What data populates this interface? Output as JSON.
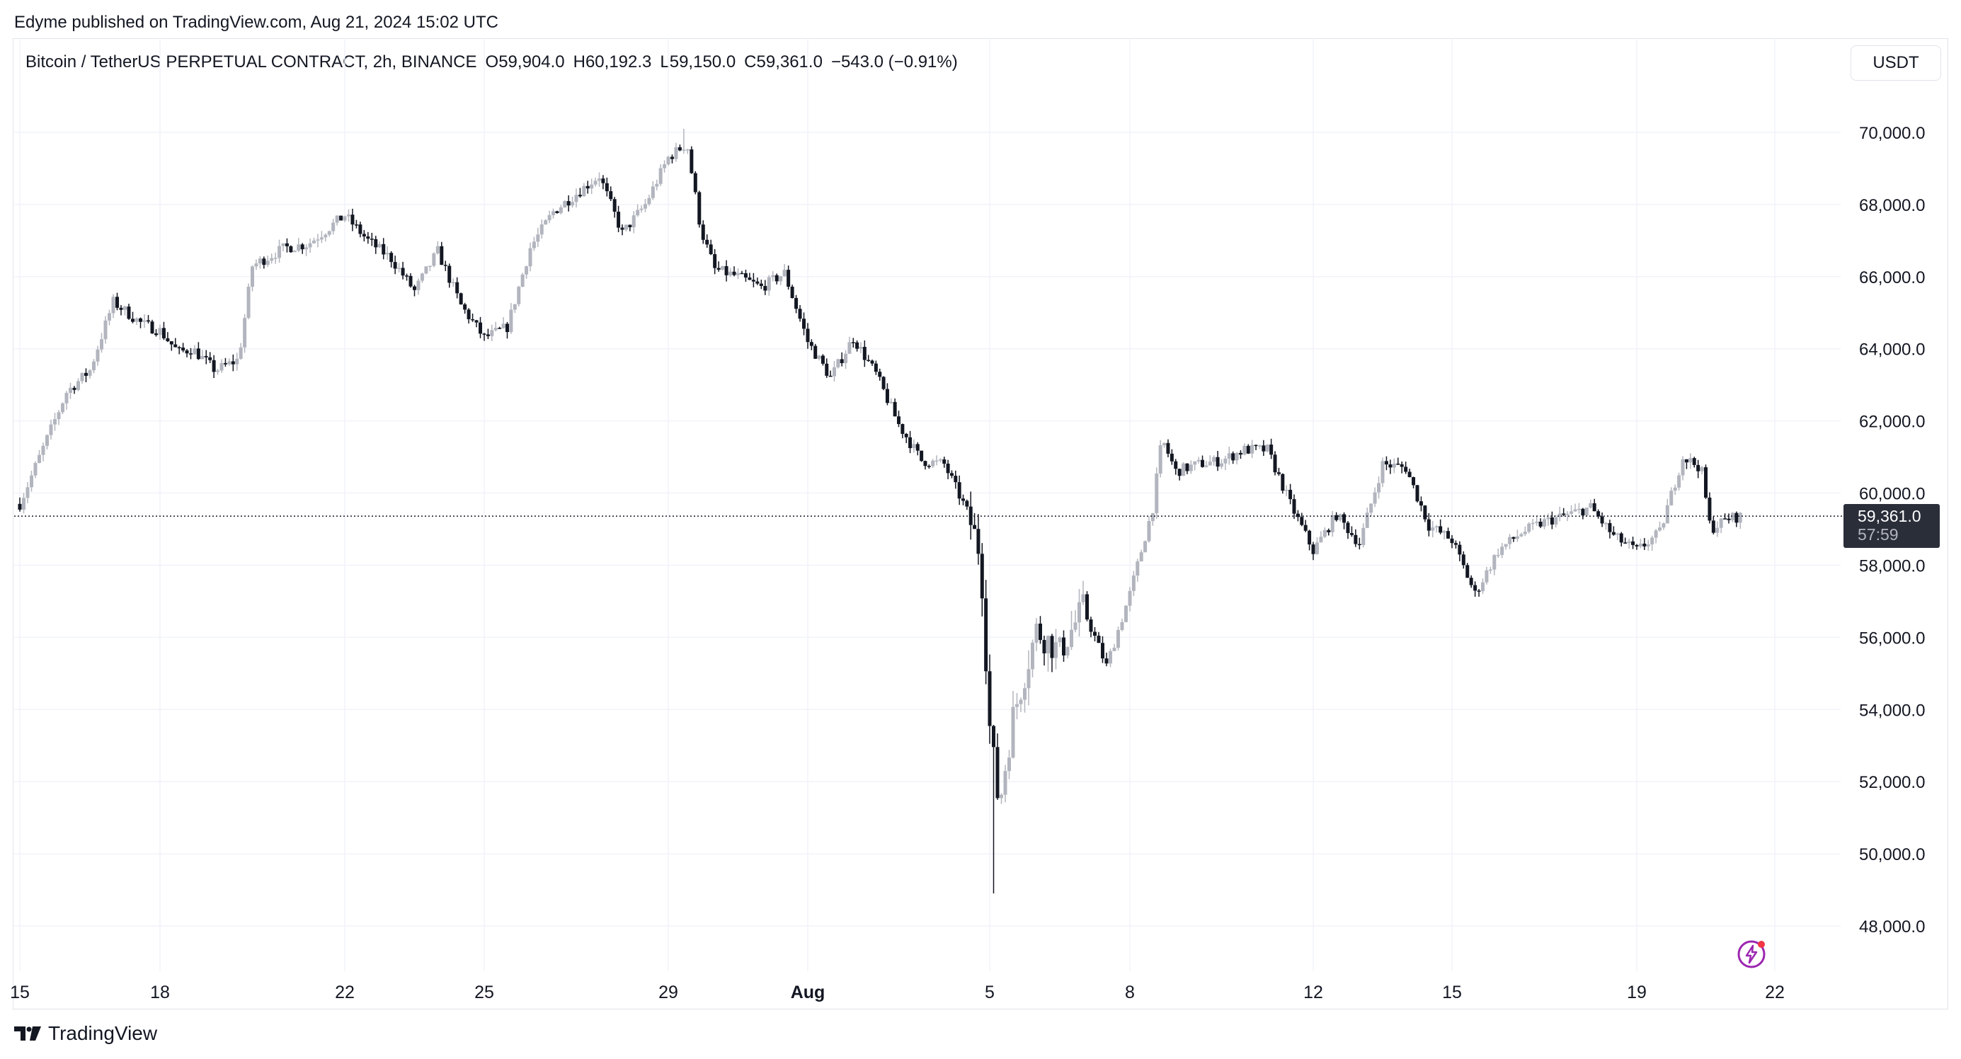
{
  "header": {
    "publisher": "Edyme published on TradingView.com, Aug 21, 2024 15:02 UTC"
  },
  "legend": {
    "symbol": "Bitcoin / TetherUS PERPETUAL CONTRACT, 2h, BINANCE",
    "open": "O59,904.0",
    "high": "H60,192.3",
    "low": "L59,150.0",
    "close": "C59,361.0",
    "change": "−543.0 (−0.91%)"
  },
  "currency_button": "USDT",
  "last_price": {
    "price": "59,361.0",
    "countdown": "57:59"
  },
  "footer": {
    "brand": "TradingView"
  },
  "colors": {
    "up": "#b2b5be",
    "down": "#131722",
    "grid": "#f0f3fa",
    "last_line": "#131722"
  },
  "icons": {
    "alert": "lightning-bolt-icon",
    "logo": "tradingview-logo-icon"
  },
  "chart_data": {
    "type": "candlestick",
    "symbol": "Bitcoin / TetherUS PERPETUAL CONTRACT",
    "interval": "2h",
    "y_axis": {
      "ticks": [
        "70,000.0",
        "68,000.0",
        "66,000.0",
        "64,000.0",
        "62,000.0",
        "60,000.0",
        "58,000.0",
        "56,000.0",
        "54,000.0",
        "52,000.0",
        "50,000.0",
        "48,000.0"
      ],
      "ylim": [
        47000,
        71000
      ],
      "position": "right"
    },
    "x_axis": {
      "ticks": [
        "15",
        "18",
        "22",
        "25",
        "29",
        "Aug",
        "5",
        "8",
        "12",
        "15",
        "19",
        "22"
      ],
      "bold_ticks": [
        "Aug"
      ]
    },
    "grid": true,
    "last_close": 59361.0,
    "close_path": [
      [
        "15",
        59700
      ],
      [
        "16",
        62800
      ],
      [
        "16.5",
        63400
      ],
      [
        "17",
        65300
      ],
      [
        "17.6",
        64700
      ],
      [
        "18",
        64500
      ],
      [
        "18.4",
        63900
      ],
      [
        "18.7",
        64000
      ],
      [
        "19.2",
        63400
      ],
      [
        "19.7",
        63700
      ],
      [
        "20",
        66300
      ],
      [
        "20.7",
        66800
      ],
      [
        "21.2",
        66900
      ],
      [
        "21.7",
        67400
      ],
      [
        "22",
        67700
      ],
      [
        "22.5",
        67000
      ],
      [
        "23",
        66500
      ],
      [
        "23.5",
        65600
      ],
      [
        "24",
        66700
      ],
      [
        "24.5",
        65200
      ],
      [
        "25",
        64300
      ],
      [
        "25.5",
        64600
      ],
      [
        "26",
        66800
      ],
      [
        "26.5",
        67800
      ],
      [
        "27",
        68300
      ],
      [
        "27.5",
        68800
      ],
      [
        "28",
        67200
      ],
      [
        "28.5",
        68000
      ],
      [
        "29",
        69300
      ],
      [
        "29.4",
        69700
      ],
      [
        "29.7",
        67300
      ],
      [
        "30",
        66200
      ],
      [
        "30.5",
        66000
      ],
      [
        "31",
        65700
      ],
      [
        "31.5",
        66100
      ],
      [
        "Aug",
        64200
      ],
      [
        "1.5",
        63200
      ],
      [
        "2",
        64300
      ],
      [
        "2.5",
        63300
      ],
      [
        "3",
        61900
      ],
      [
        "3.5",
        60900
      ],
      [
        "4",
        60800
      ],
      [
        "4.5",
        59500
      ],
      [
        "4.8",
        58300
      ],
      [
        "5",
        53500
      ],
      [
        "5.2",
        51300
      ],
      [
        "5.5",
        53800
      ],
      [
        "6",
        56200
      ],
      [
        "6.5",
        55600
      ],
      [
        "7",
        56800
      ],
      [
        "7.5",
        55200
      ],
      [
        "8",
        57200
      ],
      [
        "8.5",
        59600
      ],
      [
        "8.7",
        61500
      ],
      [
        "9",
        60600
      ],
      [
        "9.5",
        60800
      ],
      [
        "10",
        60900
      ],
      [
        "10.5",
        61200
      ],
      [
        "11",
        61200
      ],
      [
        "11.5",
        59700
      ],
      [
        "12",
        58400
      ],
      [
        "12.5",
        59400
      ],
      [
        "13",
        58600
      ],
      [
        "13.5",
        60800
      ],
      [
        "14",
        60700
      ],
      [
        "14.5",
        59100
      ],
      [
        "15",
        58700
      ],
      [
        "15.5",
        57200
      ],
      [
        "16",
        58400
      ],
      [
        "16.5",
        58900
      ],
      [
        "17",
        59200
      ],
      [
        "17.5",
        59400
      ],
      [
        "18",
        59600
      ],
      [
        "18.5",
        58800
      ],
      [
        "19",
        58400
      ],
      [
        "19.5",
        58900
      ],
      [
        "20",
        61000
      ],
      [
        "20.4",
        60700
      ],
      [
        "20.6",
        59000
      ],
      [
        "21",
        59300
      ],
      [
        "21.3",
        59361
      ]
    ],
    "extremes": {
      "high": 70100,
      "low": 48900,
      "high_near": "29",
      "low_near": "5"
    }
  }
}
